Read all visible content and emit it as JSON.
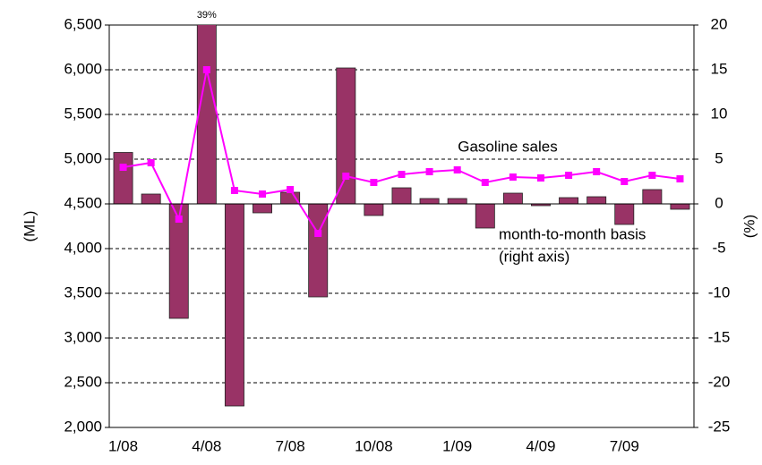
{
  "chart_data": {
    "type": "bar-line",
    "categories": [
      "1/08",
      null,
      null,
      "4/08",
      null,
      null,
      "7/08",
      null,
      null,
      "10/08",
      null,
      null,
      "1/09",
      null,
      null,
      "4/09",
      null,
      null,
      "7/09",
      null,
      null
    ],
    "series": [
      {
        "name": "Gasoline sales",
        "type": "line",
        "axis": "y",
        "color": "#ff00ff",
        "values": [
          4910,
          4960,
          4330,
          6000,
          4650,
          4610,
          4660,
          4170,
          4810,
          4740,
          4830,
          4860,
          4880,
          4740,
          4800,
          4790,
          4820,
          4860,
          4750,
          4820,
          4780
        ]
      },
      {
        "name": "month-to-month basis",
        "type": "bar",
        "axis": "y2",
        "color": "#993366",
        "values": [
          5.75,
          1.1,
          -12.8,
          39,
          -22.6,
          -1,
          1.3,
          -10.4,
          15.2,
          -1.3,
          1.8,
          0.6,
          0.6,
          -2.7,
          1.2,
          -0.2,
          0.7,
          0.8,
          -2.3,
          1.6,
          -0.6
        ],
        "value_labels": [
          null,
          null,
          null,
          "39%",
          null,
          null,
          null,
          null,
          null,
          null,
          null,
          null,
          null,
          null,
          null,
          null,
          null,
          null,
          null,
          null,
          null
        ]
      }
    ],
    "annotations": [
      "(right axis)"
    ],
    "ylabel": "(ML)",
    "y2label": "(%)",
    "ylim": [
      2000,
      6500
    ],
    "yticks": [
      {
        "value": 2000,
        "label": "2,000"
      },
      {
        "value": 2500,
        "label": "2,500"
      },
      {
        "value": 3000,
        "label": "3,000"
      },
      {
        "value": 3500,
        "label": "3,500"
      },
      {
        "value": 4000,
        "label": "4,000"
      },
      {
        "value": 4500,
        "label": "4,500"
      },
      {
        "value": 5000,
        "label": "5,000"
      },
      {
        "value": 5500,
        "label": "5,500"
      },
      {
        "value": 6000,
        "label": "6,000"
      },
      {
        "value": 6500,
        "label": "6,500"
      }
    ],
    "y2lim": [
      -25,
      20
    ],
    "y2ticks": [
      -25,
      -20,
      -15,
      -10,
      -5,
      0,
      5,
      10,
      15,
      20
    ],
    "grid": true
  }
}
